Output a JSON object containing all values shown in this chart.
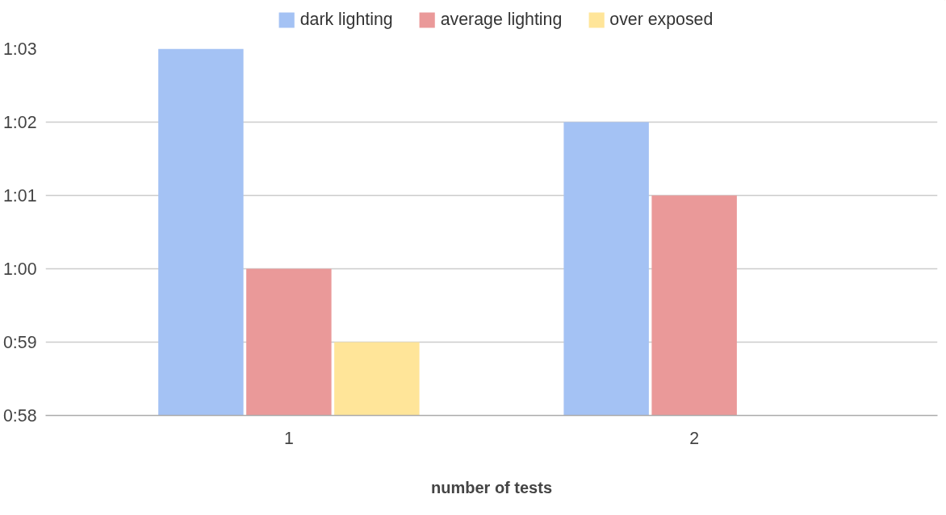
{
  "chart_data": {
    "type": "bar",
    "xlabel": "number of tests",
    "categories": [
      "1",
      "2"
    ],
    "series": [
      {
        "name": "dark lighting",
        "color": "#a4c2f4",
        "values": [
          63,
          62
        ]
      },
      {
        "name": "average lighting",
        "color": "#ea9999",
        "values": [
          60,
          61
        ]
      },
      {
        "name": "over exposed",
        "color": "#ffe599",
        "values": [
          59,
          null
        ]
      }
    ],
    "ylim": [
      58,
      63
    ],
    "yticks": [
      {
        "value": 58,
        "label": "0:58"
      },
      {
        "value": 59,
        "label": "0:59"
      },
      {
        "value": 60,
        "label": "1:00"
      },
      {
        "value": 61,
        "label": "1:01"
      },
      {
        "value": 62,
        "label": "1:02"
      },
      {
        "value": 63,
        "label": "1:03"
      }
    ],
    "grid": "y",
    "legend": "top"
  }
}
